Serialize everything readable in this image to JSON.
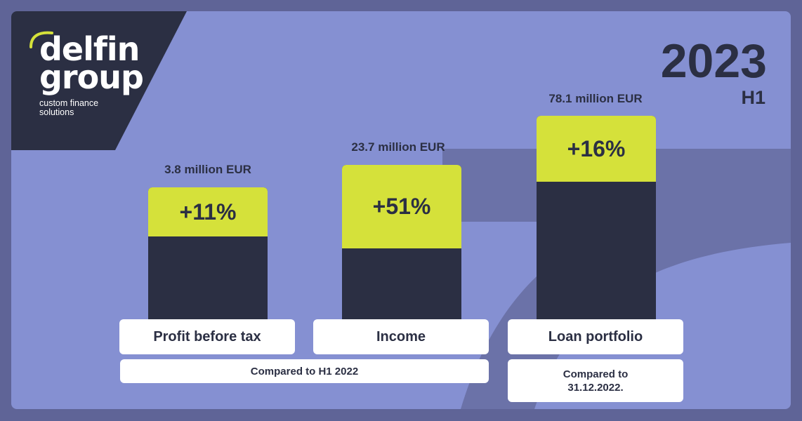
{
  "brand": {
    "name_line1": "delfin",
    "name_line2": "group",
    "tagline": "custom finance solutions"
  },
  "header": {
    "year": "2023",
    "period": "H1"
  },
  "colors": {
    "background": "#8590d2",
    "dark": "#2b2f43",
    "accent": "#d5e13a",
    "card": "#ffffff"
  },
  "chart_data": {
    "type": "bar",
    "categories": [
      "Profit before tax",
      "Income",
      "Loan portfolio"
    ],
    "values_labels": [
      "3.8 million EUR",
      "23.7 million EUR",
      "78.1 million EUR"
    ],
    "growth_labels": [
      "+11%",
      "+51%",
      "+16%"
    ],
    "growth": [
      11,
      51,
      16
    ],
    "title": "",
    "xlabel": "",
    "ylabel": ""
  },
  "notes": {
    "comparison_h1": "Compared to H1 2022",
    "comparison_year_line1": "Compared to",
    "comparison_year_line2": "31.12.2022."
  }
}
